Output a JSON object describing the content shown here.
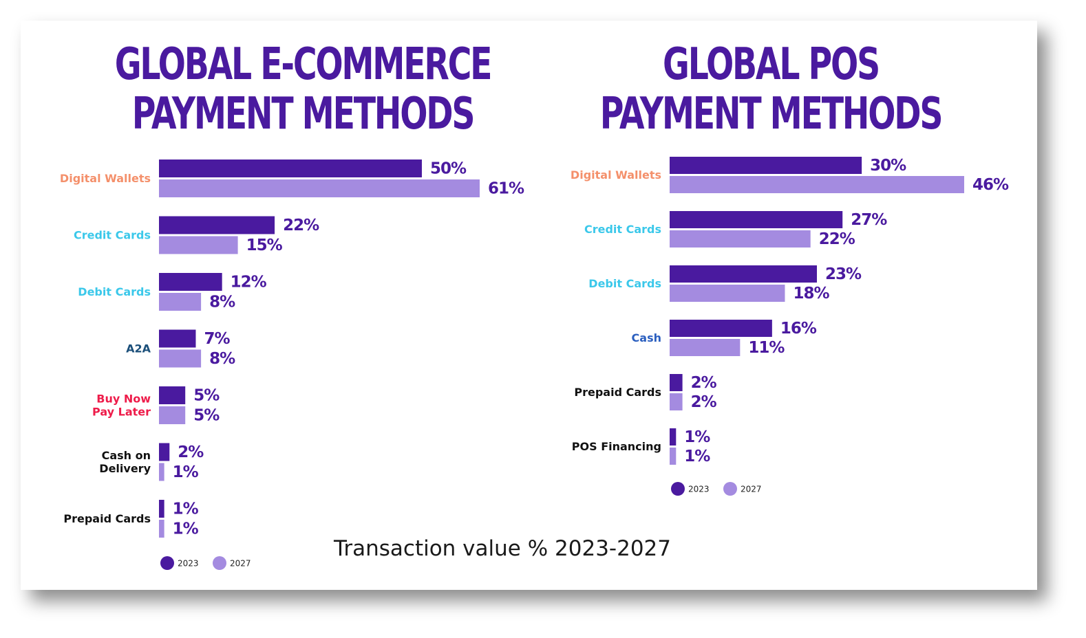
{
  "subtitle": "Transaction value % 2023-2027",
  "colors": {
    "s2023": "#4a1a9f",
    "s2027": "#a48be0",
    "title": "#4a1a9f"
  },
  "chart_data": [
    {
      "type": "bar",
      "orientation": "horizontal",
      "title_lines": [
        "GLOBAL E-COMMERCE",
        "PAYMENT METHODS"
      ],
      "categories": [
        "Digital Wallets",
        "Credit Cards",
        "Debit Cards",
        "A2A",
        "Buy Now Pay Later",
        "Cash on Delivery",
        "Prepaid Cards"
      ],
      "category_label_lines": [
        [
          "Digital Wallets"
        ],
        [
          "Credit Cards"
        ],
        [
          "Debit Cards"
        ],
        [
          "A2A"
        ],
        [
          "Buy Now",
          "Pay Later"
        ],
        [
          "Cash on",
          "Delivery"
        ],
        [
          "Prepaid Cards"
        ]
      ],
      "category_colors": [
        "#f4906b",
        "#3bc8ea",
        "#3bc8ea",
        "#1b4f7a",
        "#ee1c4a",
        "#111111",
        "#111111"
      ],
      "series": [
        {
          "name": "2023",
          "values": [
            50,
            22,
            12,
            7,
            5,
            2,
            1
          ],
          "labels": [
            "50%",
            "22%",
            "12%",
            "7%",
            "5%",
            "2%",
            "1%"
          ]
        },
        {
          "name": "2027",
          "values": [
            61,
            15,
            8,
            8,
            5,
            1,
            1
          ],
          "labels": [
            "61%",
            "15%",
            "8%",
            "8%",
            "5%",
            "1%",
            "1%"
          ]
        }
      ],
      "unit": "%",
      "legend": [
        "2023",
        "2027"
      ],
      "legend_position": "bottom-left",
      "grid": false
    },
    {
      "type": "bar",
      "orientation": "horizontal",
      "title_lines": [
        "GLOBAL POS",
        "PAYMENT METHODS"
      ],
      "categories": [
        "Digital Wallets",
        "Credit Cards",
        "Debit Cards",
        "Cash",
        "Prepaid Cards",
        "POS Financing"
      ],
      "category_label_lines": [
        [
          "Digital Wallets"
        ],
        [
          "Credit Cards"
        ],
        [
          "Debit Cards"
        ],
        [
          "Cash"
        ],
        [
          "Prepaid Cards"
        ],
        [
          "POS Financing"
        ]
      ],
      "category_colors": [
        "#f4906b",
        "#3bc8ea",
        "#3bc8ea",
        "#2b5fbf",
        "#111111",
        "#111111"
      ],
      "series": [
        {
          "name": "2023",
          "values": [
            30,
            27,
            23,
            16,
            2,
            1
          ],
          "labels": [
            "30%",
            "27%",
            "23%",
            "16%",
            "2%",
            "1%"
          ]
        },
        {
          "name": "2027",
          "values": [
            46,
            22,
            18,
            11,
            2,
            1
          ],
          "labels": [
            "46%",
            "22%",
            "18%",
            "11%",
            "2%",
            "1%"
          ]
        }
      ],
      "unit": "%",
      "legend": [
        "2023",
        "2027"
      ],
      "legend_position": "bottom-left",
      "grid": false
    }
  ]
}
